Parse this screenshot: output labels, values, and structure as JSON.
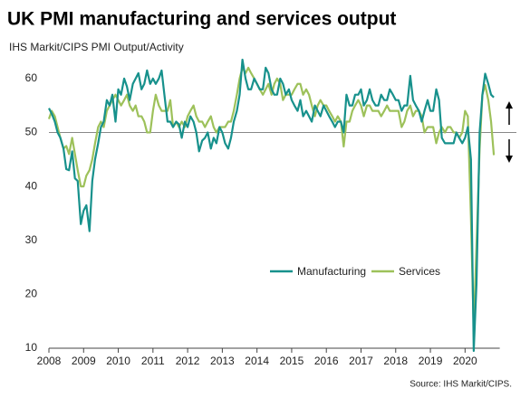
{
  "chart_data": {
    "type": "line",
    "title": "UK PMI manufacturing and services output",
    "subtitle": "IHS Markit/CIPS PMI Output/Activity",
    "source": "Source: IHS Markit/CIPS.",
    "x": [
      2008.0,
      2008.08,
      2008.17,
      2008.25,
      2008.33,
      2008.42,
      2008.5,
      2008.58,
      2008.67,
      2008.75,
      2008.83,
      2008.92,
      2009.0,
      2009.08,
      2009.17,
      2009.25,
      2009.33,
      2009.42,
      2009.5,
      2009.58,
      2009.67,
      2009.75,
      2009.83,
      2009.92,
      2010.0,
      2010.08,
      2010.17,
      2010.25,
      2010.33,
      2010.42,
      2010.5,
      2010.58,
      2010.67,
      2010.75,
      2010.83,
      2010.92,
      2011.0,
      2011.08,
      2011.17,
      2011.25,
      2011.33,
      2011.42,
      2011.5,
      2011.58,
      2011.67,
      2011.75,
      2011.83,
      2011.92,
      2012.0,
      2012.08,
      2012.17,
      2012.25,
      2012.33,
      2012.42,
      2012.5,
      2012.58,
      2012.67,
      2012.75,
      2012.83,
      2012.92,
      2013.0,
      2013.08,
      2013.17,
      2013.25,
      2013.33,
      2013.42,
      2013.5,
      2013.58,
      2013.67,
      2013.75,
      2013.83,
      2013.92,
      2014.0,
      2014.08,
      2014.17,
      2014.25,
      2014.33,
      2014.42,
      2014.5,
      2014.58,
      2014.67,
      2014.75,
      2014.83,
      2014.92,
      2015.0,
      2015.08,
      2015.17,
      2015.25,
      2015.33,
      2015.42,
      2015.5,
      2015.58,
      2015.67,
      2015.75,
      2015.83,
      2015.92,
      2016.0,
      2016.08,
      2016.17,
      2016.25,
      2016.33,
      2016.42,
      2016.5,
      2016.58,
      2016.67,
      2016.75,
      2016.83,
      2016.92,
      2017.0,
      2017.08,
      2017.17,
      2017.25,
      2017.33,
      2017.42,
      2017.5,
      2017.58,
      2017.67,
      2017.75,
      2017.83,
      2017.92,
      2018.0,
      2018.08,
      2018.17,
      2018.25,
      2018.33,
      2018.42,
      2018.5,
      2018.58,
      2018.67,
      2018.75,
      2018.83,
      2018.92,
      2019.0,
      2019.08,
      2019.17,
      2019.25,
      2019.33,
      2019.42,
      2019.5,
      2019.58,
      2019.67,
      2019.75,
      2019.83,
      2019.92,
      2020.0,
      2020.08,
      2020.17,
      2020.25,
      2020.33,
      2020.42,
      2020.5,
      2020.58,
      2020.67,
      2020.75,
      2020.83
    ],
    "series": [
      {
        "name": "Manufacturing",
        "color": "#17918c",
        "values": [
          54.5,
          53.5,
          52,
          50,
          49,
          47,
          43.2,
          43,
          46.5,
          41.5,
          41,
          33,
          35.5,
          36.5,
          31.7,
          41,
          45,
          48,
          51,
          52,
          56,
          55,
          57,
          52,
          58,
          57,
          60,
          58.5,
          56,
          59,
          60,
          61,
          58,
          59,
          61.5,
          59,
          60,
          59,
          60,
          61.5,
          57,
          52,
          52,
          51,
          52,
          51.5,
          49,
          52,
          51,
          53,
          52,
          50,
          46.5,
          48.5,
          49,
          50,
          47,
          49,
          48,
          51,
          50,
          48,
          47,
          49,
          52,
          54,
          57,
          63.5,
          60,
          58,
          58,
          60,
          59,
          58,
          58,
          62,
          61,
          58,
          57,
          57,
          60,
          59,
          57,
          58,
          56,
          55,
          54,
          56,
          53,
          54,
          53,
          52,
          55,
          54,
          53,
          55,
          54,
          53,
          52,
          51,
          52,
          52,
          50,
          57,
          55,
          55,
          57,
          57,
          58,
          55,
          56,
          58,
          56,
          55,
          55,
          57,
          56,
          56,
          58,
          57,
          56,
          56,
          54,
          55,
          55,
          60.5,
          56,
          55,
          54,
          52,
          54,
          56,
          54,
          54,
          58,
          56,
          49,
          48,
          48,
          48,
          48,
          50,
          49,
          48,
          49,
          51,
          45,
          9.5,
          22,
          50,
          57,
          60.9,
          59,
          57,
          56.5
        ]
      },
      {
        "name": "Services",
        "color": "#9dc15a",
        "values": [
          52.5,
          54,
          53,
          51,
          49,
          47,
          47.5,
          46,
          49,
          46,
          43,
          40,
          40,
          42,
          43,
          45,
          48,
          51,
          52,
          51,
          54,
          55,
          56,
          57,
          56,
          55,
          56,
          57,
          55,
          54,
          55,
          53,
          53,
          52,
          50,
          50,
          54,
          57,
          55,
          54,
          54,
          54,
          56,
          51,
          52,
          51,
          52,
          51,
          53,
          54,
          55,
          53,
          52,
          52,
          51,
          52,
          53,
          51,
          50,
          51,
          51,
          51,
          52,
          52,
          54,
          57,
          60,
          62,
          61,
          62,
          61,
          60,
          59,
          58,
          57,
          58,
          59,
          57,
          59,
          60,
          59,
          56,
          57,
          57,
          57,
          58,
          59,
          59,
          57,
          58,
          57,
          55,
          53,
          55,
          56,
          55,
          55,
          54,
          53,
          52,
          53,
          52,
          47.4,
          52,
          52,
          54,
          55,
          56,
          55,
          53,
          55,
          55,
          54,
          54,
          54,
          53,
          54,
          55,
          54,
          54,
          54,
          54,
          51,
          52,
          54,
          55,
          53,
          54,
          54,
          53,
          50,
          51,
          51,
          51,
          48,
          50,
          51,
          50,
          51,
          51,
          50,
          50,
          49,
          50,
          54,
          53,
          34,
          13.4,
          29,
          47,
          57,
          58.8,
          56,
          52,
          45.8
        ]
      }
    ],
    "xlim": [
      2008,
      2021
    ],
    "xticks": [
      2008,
      2009,
      2010,
      2011,
      2012,
      2013,
      2014,
      2015,
      2016,
      2017,
      2018,
      2019,
      2020
    ],
    "ylim": [
      10,
      65
    ],
    "yticks": [
      10,
      20,
      30,
      40,
      50,
      60
    ],
    "reference_line": 50
  }
}
